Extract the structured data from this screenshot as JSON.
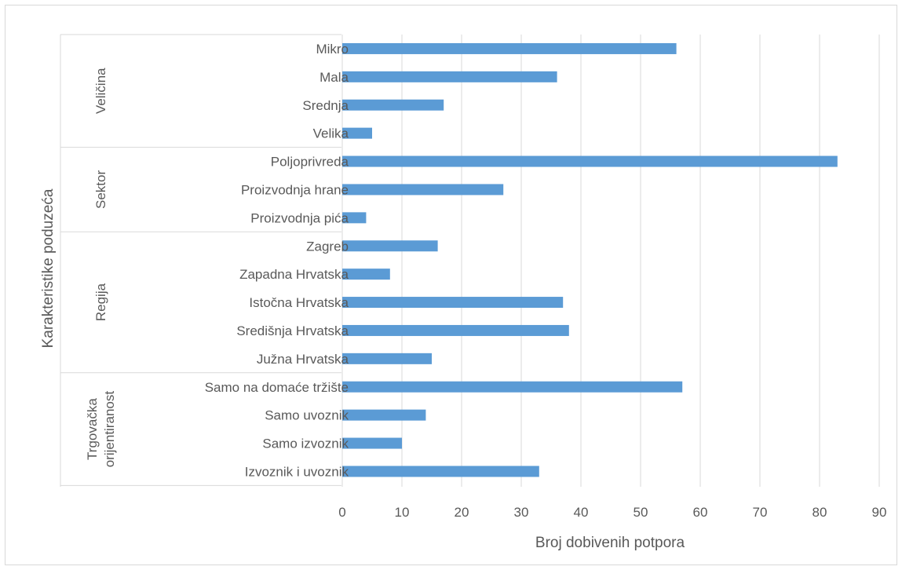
{
  "chart_data": {
    "type": "bar",
    "orientation": "horizontal",
    "title": "",
    "xlabel": "Broj dobivenih potpora",
    "ylabel": "Karakteristike poduzeća",
    "xlim": [
      0,
      90
    ],
    "x_ticks": [
      "0",
      "10",
      "20",
      "30",
      "40",
      "50",
      "60",
      "70",
      "80",
      "90"
    ],
    "grid": "vertical",
    "bar_color": "#5b9bd5",
    "groups": [
      {
        "name": "Veličina",
        "categories": [
          "Mikro",
          "Mala",
          "Srednja",
          "Velika"
        ],
        "values": [
          56,
          36,
          17,
          5
        ]
      },
      {
        "name": "Sektor",
        "categories": [
          "Poljoprivreda",
          "Proizvodnja hrane",
          "Proizvodnja pića"
        ],
        "values": [
          83,
          27,
          4
        ]
      },
      {
        "name": "Regija",
        "categories": [
          "Zagreb",
          "Zapadna Hrvatska",
          "Istočna Hrvatska",
          "Središnja Hrvatska",
          "Južna Hrvatska"
        ],
        "values": [
          16,
          8,
          37,
          38,
          15
        ]
      },
      {
        "name": "Trgovačka orijentiranost",
        "name_lines": [
          "Trgovačka",
          "orijentiranost"
        ],
        "categories": [
          "Samo na domaće tržište",
          "Samo uvoznik",
          "Samo izvoznik",
          "Izvoznik i uvoznik"
        ],
        "values": [
          57,
          14,
          10,
          33
        ]
      }
    ]
  }
}
